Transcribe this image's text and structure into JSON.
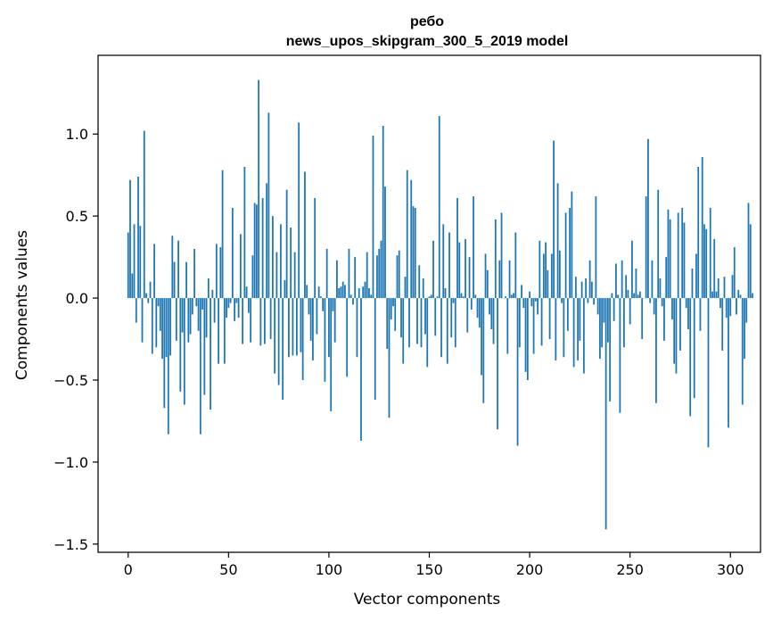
{
  "chart_data": {
    "type": "bar",
    "title": "ребо",
    "subtitle": "news_upos_skipgram_300_5_2019 model",
    "xlabel": "Vector components",
    "ylabel": "Components values",
    "xlim": [
      -15,
      315
    ],
    "ylim": [
      -1.55,
      1.48
    ],
    "xticks": [
      0,
      50,
      100,
      150,
      200,
      250,
      300
    ],
    "xtick_labels": [
      "0",
      "50",
      "100",
      "150",
      "200",
      "250",
      "300"
    ],
    "yticks": [
      -1.5,
      -1.0,
      -0.5,
      0.0,
      0.5,
      1.0
    ],
    "ytick_labels": [
      "−1.5",
      "−1.0",
      "−0.5",
      "0.0",
      "0.5",
      "1.0"
    ],
    "grid": false,
    "bar_color": "#1f77b4",
    "series": [
      {
        "x_start": 0,
        "values": [
          0.4,
          0.72,
          0.15,
          0.45,
          -0.15,
          0.74,
          0.44,
          -0.27,
          1.02,
          0.03,
          -0.03,
          0.1,
          -0.34,
          0.33,
          -0.3,
          -0.05,
          -0.2,
          -0.37,
          -0.67,
          -0.36,
          -0.83,
          -0.35,
          0.38,
          0.22,
          -0.26,
          0.35,
          -0.57,
          -0.21,
          -0.65,
          0.22,
          -0.27,
          -0.22,
          -0.1,
          0.3,
          -0.05,
          -0.2,
          -0.83,
          -0.07,
          -0.59,
          -0.24,
          0.12,
          -0.68,
          0.05,
          -0.15,
          0.33,
          -0.4,
          0.31,
          0.78,
          -0.4,
          -0.12,
          -0.06,
          -0.03,
          0.55,
          -0.14,
          -0.03,
          -0.12,
          0.39,
          -0.28,
          0.8,
          0.07,
          -0.09,
          -0.27,
          0.26,
          0.58,
          0.57,
          1.33,
          -0.29,
          0.61,
          -0.28,
          0.7,
          1.13,
          -0.25,
          0.5,
          -0.46,
          0.28,
          -0.53,
          0.45,
          -0.62,
          0.11,
          0.66,
          -0.36,
          0.43,
          -0.35,
          0.28,
          -0.35,
          1.07,
          -0.33,
          -0.5,
          0.77,
          0.08,
          -0.1,
          -0.26,
          -0.38,
          0.61,
          -0.22,
          0.07,
          0.01,
          -0.08,
          -0.51,
          0.3,
          -0.36,
          -0.69,
          -0.08,
          -0.27,
          0.23,
          0.06,
          0.07,
          0.1,
          0.08,
          -0.48,
          0.3,
          0.02,
          -0.04,
          0.25,
          -0.36,
          0.06,
          -0.87,
          0.07,
          0.1,
          0.28,
          0.06,
          0.02,
          0.99,
          -0.62,
          0.26,
          0.3,
          0.35,
          1.05,
          0.68,
          -0.31,
          -0.73,
          -0.13,
          -0.05,
          -0.2,
          0.26,
          0.29,
          -0.24,
          -0.4,
          0.13,
          0.78,
          -0.3,
          0.72,
          0.56,
          0.55,
          -0.28,
          0.2,
          -0.3,
          0.12,
          -0.22,
          -0.42,
          0.01,
          0.02,
          0.35,
          -0.23,
          0.01,
          1.11,
          -0.36,
          0.45,
          0.06,
          -0.4,
          0.4,
          -0.24,
          -0.03,
          -0.3,
          0.61,
          0.34,
          0.03,
          0.01,
          0.36,
          -0.21,
          0.25,
          -0.07,
          0.62,
          0.02,
          -0.12,
          -0.18,
          -0.47,
          -0.64,
          0.27,
          0.17,
          -0.1,
          -0.19,
          -0.28,
          0.48,
          -0.8,
          0.23,
          0.52,
          0.0,
          0.01,
          -0.34,
          0.23,
          0.02,
          0.03,
          0.4,
          -0.9,
          -0.3,
          0.08,
          -0.06,
          -0.45,
          -0.5,
          0.04,
          -0.05,
          -0.34,
          -0.02,
          -0.1,
          0.35,
          -0.29,
          0.27,
          0.34,
          0.17,
          -0.25,
          0.27,
          0.96,
          -0.38,
          0.7,
          0.29,
          -0.03,
          -0.36,
          0.52,
          -0.2,
          0.55,
          0.65,
          -0.42,
          0.13,
          -0.38,
          -0.26,
          0.1,
          -0.46,
          0.12,
          -0.03,
          0.23,
          0.1,
          -0.04,
          0.62,
          -0.1,
          -0.37,
          -0.3,
          -0.15,
          -1.41,
          -0.27,
          -0.63,
          0.03,
          -0.14,
          0.21,
          0.02,
          -0.7,
          0.23,
          -0.3,
          0.14,
          0.05,
          -0.16,
          0.35,
          0.03,
          0.18,
          0.02,
          0.04,
          -0.25,
          0.0,
          0.62,
          0.97,
          -0.03,
          0.23,
          -0.1,
          -0.64,
          0.66,
          0.12,
          -0.05,
          -0.26,
          0.25,
          0.54,
          0.48,
          -0.13,
          -0.4,
          -0.46,
          0.52,
          -0.32,
          0.55,
          0.46,
          -0.06,
          -0.19,
          -0.72,
          0.18,
          -0.61,
          0.27,
          0.8,
          -0.2,
          0.86,
          0.45,
          0.42,
          -0.91,
          0.55,
          0.04,
          0.36,
          0.04,
          0.12,
          -0.06,
          -0.32,
          0.13,
          -0.12,
          -0.79,
          -0.11,
          0.14,
          0.31,
          -0.1,
          0.05,
          0.02,
          -0.65,
          -0.37,
          -0.15,
          0.58,
          0.45,
          0.03
        ]
      }
    ]
  }
}
